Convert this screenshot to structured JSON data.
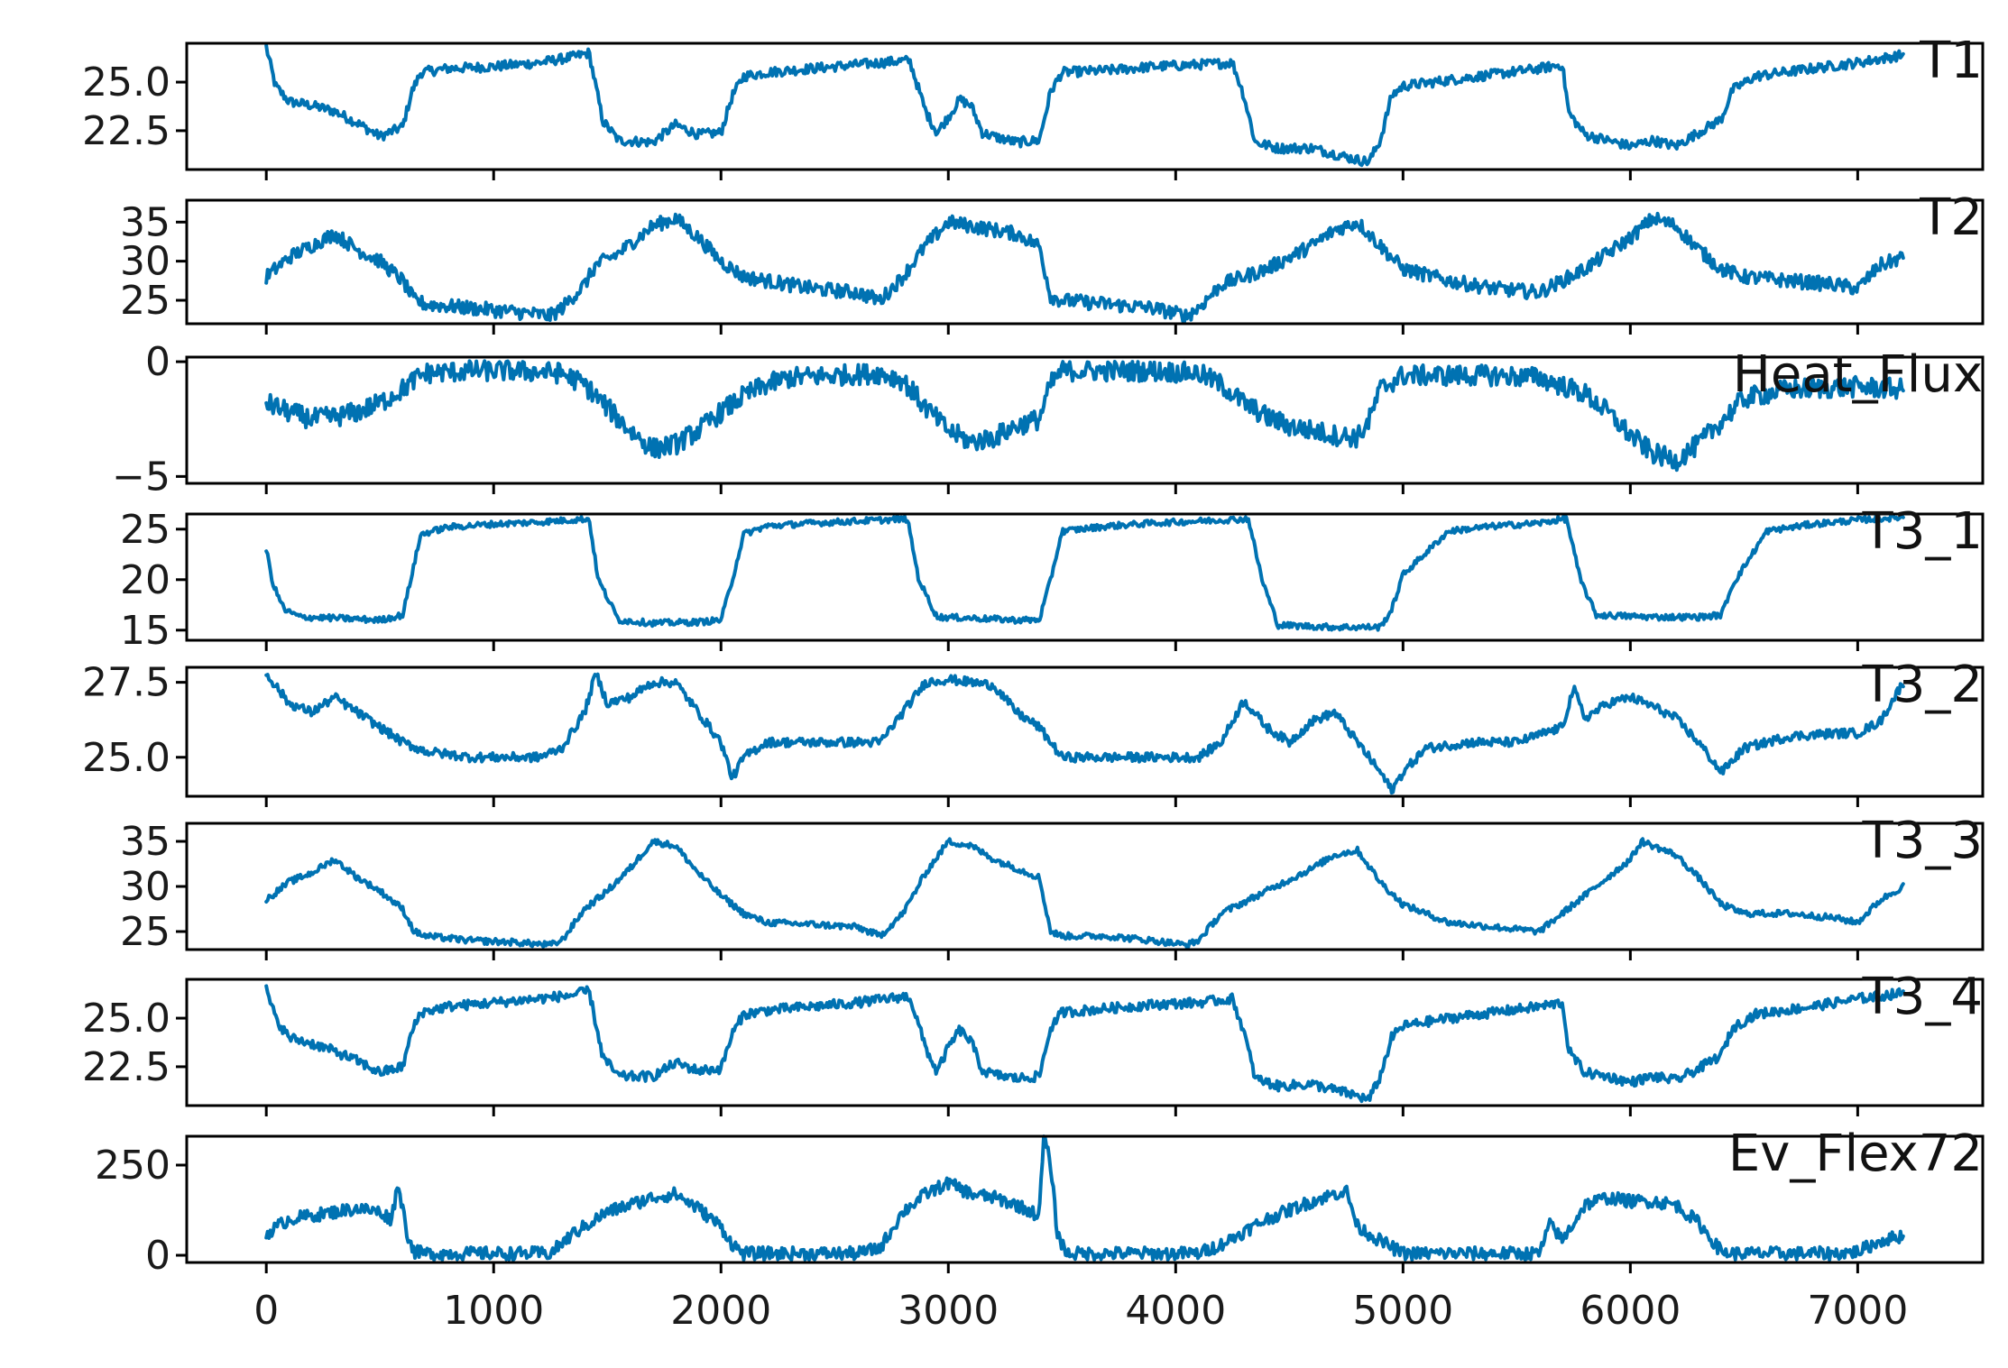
{
  "chart_data": {
    "type": "line",
    "shared_x": true,
    "xlim": [
      -350,
      7550
    ],
    "xticks": [
      0,
      1000,
      2000,
      3000,
      4000,
      5000,
      6000,
      7000
    ],
    "xtick_labels": [
      "0",
      "1000",
      "2000",
      "3000",
      "4000",
      "5000",
      "6000",
      "7000"
    ],
    "color": "#0072b2",
    "grid": false,
    "legend": "none",
    "panels": [
      {
        "label": "T1",
        "ylim": [
          20.5,
          27.0
        ],
        "yticks": [
          22.5,
          25.0
        ],
        "ytick_labels": [
          "22.5",
          "25.0"
        ],
        "noise": 0.25,
        "x": [
          0,
          40,
          100,
          200,
          300,
          400,
          500,
          600,
          640,
          680,
          800,
          1000,
          1200,
          1350,
          1420,
          1480,
          1550,
          1700,
          1800,
          1900,
          2000,
          2050,
          2100,
          2200,
          2400,
          2600,
          2800,
          2830,
          2900,
          2950,
          3000,
          3050,
          3100,
          3150,
          3200,
          3300,
          3400,
          3450,
          3500,
          3700,
          3900,
          4100,
          4250,
          4300,
          4350,
          4450,
          4600,
          4700,
          4800,
          4850,
          4900,
          4950,
          5000,
          5200,
          5400,
          5600,
          5700,
          5730,
          5800,
          5900,
          6000,
          6100,
          6200,
          6300,
          6400,
          6450,
          6550,
          6800,
          7000,
          7200
        ],
        "y": [
          26.8,
          24.8,
          24.0,
          23.8,
          23.5,
          22.9,
          22.2,
          22.7,
          24.5,
          25.5,
          25.7,
          25.8,
          26.0,
          26.3,
          26.5,
          23.0,
          22.0,
          21.9,
          22.8,
          22.3,
          22.4,
          24.3,
          25.3,
          25.5,
          25.7,
          25.9,
          26.1,
          26.1,
          23.5,
          22.4,
          23.2,
          24.1,
          23.8,
          22.4,
          22.2,
          21.9,
          22.0,
          24.5,
          25.5,
          25.6,
          25.8,
          25.9,
          26.0,
          24.3,
          21.9,
          21.6,
          21.6,
          21.3,
          21.0,
          20.9,
          22.0,
          24.3,
          24.8,
          25.1,
          25.4,
          25.7,
          25.9,
          23.4,
          22.3,
          22.0,
          21.7,
          22.0,
          21.7,
          22.4,
          23.1,
          24.6,
          25.3,
          25.7,
          26.0,
          26.4
        ]
      },
      {
        "label": "T2",
        "ylim": [
          22.0,
          37.8
        ],
        "yticks": [
          25,
          30,
          35
        ],
        "ytick_labels": [
          "25",
          "30",
          "35"
        ],
        "noise": 0.9,
        "x": [
          0,
          100,
          200,
          300,
          400,
          500,
          600,
          650,
          700,
          900,
          1100,
          1250,
          1300,
          1400,
          1450,
          1550,
          1700,
          1800,
          1900,
          2000,
          2100,
          2200,
          2400,
          2600,
          2700,
          2800,
          2900,
          3000,
          3100,
          3200,
          3300,
          3400,
          3450,
          3500,
          3700,
          3900,
          4050,
          4100,
          4200,
          4400,
          4600,
          4700,
          4800,
          4900,
          5000,
          5200,
          5400,
          5600,
          5800,
          6000,
          6100,
          6200,
          6300,
          6400,
          6500,
          6700,
          6900,
          7000,
          7100,
          7200
        ],
        "y": [
          28.0,
          30.5,
          32.0,
          33.5,
          31.5,
          30.0,
          27.5,
          25.0,
          24.5,
          24.0,
          23.5,
          23.0,
          24.0,
          27.0,
          29.5,
          31.0,
          34.5,
          35.5,
          33.0,
          30.0,
          28.0,
          27.5,
          26.5,
          26.0,
          25.0,
          28.0,
          32.0,
          35.0,
          34.5,
          34.0,
          33.5,
          32.0,
          25.5,
          25.0,
          24.5,
          24.0,
          23.0,
          24.0,
          27.0,
          29.0,
          32.0,
          34.0,
          35.0,
          32.0,
          29.0,
          27.5,
          26.5,
          26.0,
          29.0,
          33.0,
          35.5,
          34.5,
          31.5,
          29.0,
          28.0,
          27.5,
          27.0,
          26.5,
          29.5,
          30.5
        ]
      },
      {
        "label": "Heat_Flux",
        "ylim": [
          -5.3,
          0.2
        ],
        "yticks": [
          -5,
          0
        ],
        "ytick_labels": [
          "−5",
          "0"
        ],
        "noise": 0.45,
        "x": [
          0,
          100,
          200,
          300,
          400,
          500,
          550,
          600,
          650,
          700,
          900,
          1100,
          1300,
          1400,
          1500,
          1600,
          1700,
          1800,
          1900,
          2000,
          2100,
          2200,
          2300,
          2500,
          2700,
          2800,
          2900,
          3000,
          3100,
          3200,
          3300,
          3400,
          3450,
          3500,
          3700,
          3900,
          4100,
          4200,
          4300,
          4400,
          4500,
          4600,
          4700,
          4800,
          4850,
          4900,
          5000,
          5200,
          5400,
          5600,
          5800,
          5900,
          6000,
          6100,
          6200,
          6300,
          6400,
          6500,
          6700,
          7000,
          7200
        ],
        "y": [
          -1.8,
          -2.2,
          -2.5,
          -2.4,
          -2.2,
          -1.8,
          -1.5,
          -1.2,
          -0.8,
          -0.5,
          -0.4,
          -0.4,
          -0.5,
          -1.0,
          -2.0,
          -3.0,
          -3.8,
          -3.6,
          -3.0,
          -2.2,
          -1.5,
          -1.0,
          -0.7,
          -0.6,
          -0.5,
          -0.8,
          -2.0,
          -3.0,
          -3.5,
          -3.3,
          -2.8,
          -2.5,
          -1.0,
          -0.4,
          -0.4,
          -0.4,
          -0.5,
          -1.0,
          -1.8,
          -2.4,
          -2.8,
          -3.0,
          -3.2,
          -3.3,
          -2.6,
          -1.2,
          -0.6,
          -0.6,
          -0.6,
          -0.7,
          -1.4,
          -2.2,
          -3.2,
          -4.0,
          -4.3,
          -3.6,
          -2.6,
          -1.6,
          -1.2,
          -1.1,
          -1.2
        ]
      },
      {
        "label": "T3_1",
        "ylim": [
          14.0,
          26.5
        ],
        "yticks": [
          15,
          20,
          25
        ],
        "ytick_labels": [
          "15",
          "20",
          "25"
        ],
        "noise": 0.3,
        "x": [
          0,
          30,
          80,
          150,
          300,
          500,
          600,
          640,
          680,
          800,
          1000,
          1200,
          1400,
          1420,
          1460,
          1550,
          1700,
          1900,
          2000,
          2050,
          2100,
          2200,
          2400,
          2600,
          2800,
          2820,
          2870,
          2950,
          3100,
          3300,
          3400,
          3450,
          3500,
          3700,
          3900,
          4100,
          4300,
          4320,
          4380,
          4450,
          4700,
          4900,
          4950,
          5000,
          5200,
          5400,
          5600,
          5700,
          5720,
          5780,
          5850,
          6100,
          6300,
          6400,
          6450,
          6600,
          6800,
          7000,
          7200
        ],
        "y": [
          23.0,
          19.5,
          17.0,
          16.3,
          16.2,
          16.0,
          16.5,
          20.5,
          24.5,
          25.2,
          25.5,
          25.7,
          26.0,
          26.0,
          20.0,
          16.0,
          15.7,
          15.8,
          16.0,
          20.0,
          24.5,
          25.3,
          25.6,
          25.8,
          26.0,
          26.0,
          20.0,
          16.3,
          16.2,
          16.0,
          16.0,
          20.0,
          24.8,
          25.3,
          25.6,
          25.8,
          26.0,
          26.0,
          20.0,
          15.5,
          15.3,
          15.3,
          17.0,
          20.5,
          24.8,
          25.3,
          25.6,
          26.0,
          26.0,
          20.0,
          16.5,
          16.3,
          16.3,
          16.5,
          19.5,
          24.8,
          25.5,
          25.9,
          26.2
        ]
      },
      {
        "label": "T3_2",
        "ylim": [
          23.7,
          28.0
        ],
        "yticks": [
          25.0,
          27.5
        ],
        "ytick_labels": [
          "25.0",
          "27.5"
        ],
        "noise": 0.15,
        "x": [
          0,
          100,
          200,
          300,
          400,
          500,
          600,
          700,
          900,
          1100,
          1200,
          1300,
          1400,
          1450,
          1500,
          1600,
          1700,
          1800,
          1900,
          2000,
          2050,
          2100,
          2200,
          2400,
          2600,
          2700,
          2800,
          2900,
          3000,
          3100,
          3200,
          3300,
          3400,
          3450,
          3500,
          3700,
          3900,
          4100,
          4200,
          4300,
          4400,
          4500,
          4600,
          4700,
          4800,
          4900,
          4950,
          5000,
          5100,
          5300,
          5500,
          5700,
          5750,
          5800,
          5900,
          6000,
          6100,
          6200,
          6300,
          6400,
          6500,
          6700,
          6900,
          7000,
          7100,
          7200
        ],
        "y": [
          27.8,
          26.8,
          26.5,
          27.0,
          26.5,
          26.0,
          25.5,
          25.2,
          25.0,
          25.0,
          25.0,
          25.3,
          26.5,
          27.8,
          26.8,
          27.0,
          27.5,
          27.5,
          26.5,
          25.5,
          24.3,
          25.0,
          25.5,
          25.5,
          25.5,
          25.5,
          26.5,
          27.5,
          27.6,
          27.5,
          27.4,
          26.5,
          26.0,
          25.5,
          25.0,
          25.0,
          25.0,
          25.0,
          25.5,
          26.9,
          26.0,
          25.5,
          26.2,
          26.5,
          25.5,
          24.5,
          23.9,
          24.5,
          25.3,
          25.5,
          25.5,
          26.0,
          27.3,
          26.3,
          26.8,
          27.0,
          26.7,
          26.3,
          25.5,
          24.5,
          25.3,
          25.7,
          25.8,
          25.8,
          26.2,
          27.5
        ]
      },
      {
        "label": "T3_3",
        "ylim": [
          23.0,
          37.0
        ],
        "yticks": [
          25,
          30,
          35
        ],
        "ytick_labels": [
          "25",
          "30",
          "35"
        ],
        "noise": 0.35,
        "x": [
          0,
          100,
          200,
          300,
          400,
          500,
          600,
          650,
          700,
          900,
          1100,
          1250,
          1300,
          1400,
          1500,
          1600,
          1700,
          1800,
          1900,
          2000,
          2100,
          2200,
          2400,
          2600,
          2700,
          2800,
          2900,
          3000,
          3100,
          3200,
          3300,
          3400,
          3450,
          3500,
          3700,
          3900,
          4050,
          4100,
          4200,
          4400,
          4600,
          4700,
          4800,
          4900,
          5000,
          5200,
          5400,
          5600,
          5800,
          6000,
          6050,
          6200,
          6300,
          6400,
          6500,
          6700,
          6900,
          7000,
          7100,
          7200
        ],
        "y": [
          28.5,
          30.5,
          31.5,
          33.0,
          31.0,
          29.5,
          27.5,
          25.0,
          24.5,
          24.0,
          23.8,
          23.5,
          24.0,
          27.5,
          29.5,
          32.0,
          35.0,
          34.5,
          31.5,
          29.0,
          27.0,
          26.0,
          25.8,
          25.5,
          24.5,
          27.0,
          31.5,
          35.0,
          34.5,
          33.0,
          32.0,
          31.0,
          25.0,
          24.5,
          24.5,
          24.0,
          23.5,
          24.0,
          27.0,
          29.5,
          32.0,
          33.5,
          34.0,
          30.5,
          28.0,
          26.0,
          25.5,
          25.0,
          29.0,
          33.0,
          35.0,
          33.5,
          31.0,
          28.0,
          27.0,
          27.0,
          26.5,
          26.0,
          28.5,
          30.0
        ]
      },
      {
        "label": "T3_4",
        "ylim": [
          20.5,
          27.0
        ],
        "yticks": [
          22.5,
          25.0
        ],
        "ytick_labels": [
          "22.5",
          "25.0"
        ],
        "noise": 0.25,
        "x": [
          0,
          40,
          100,
          200,
          300,
          400,
          500,
          600,
          640,
          680,
          800,
          1000,
          1200,
          1350,
          1420,
          1480,
          1550,
          1700,
          1800,
          1900,
          2000,
          2050,
          2100,
          2200,
          2400,
          2600,
          2800,
          2830,
          2900,
          2950,
          3000,
          3050,
          3100,
          3150,
          3200,
          3300,
          3400,
          3450,
          3500,
          3700,
          3900,
          4100,
          4250,
          4300,
          4350,
          4450,
          4600,
          4700,
          4800,
          4850,
          4900,
          4950,
          5000,
          5200,
          5400,
          5600,
          5700,
          5730,
          5800,
          5900,
          6000,
          6100,
          6200,
          6300,
          6400,
          6450,
          6550,
          6800,
          7000,
          7200
        ],
        "y": [
          26.5,
          25.0,
          24.0,
          23.7,
          23.3,
          22.8,
          22.2,
          22.5,
          24.3,
          25.3,
          25.6,
          25.8,
          26.0,
          26.2,
          26.4,
          23.0,
          22.0,
          22.0,
          22.7,
          22.3,
          22.4,
          24.2,
          25.2,
          25.4,
          25.6,
          25.8,
          26.1,
          26.1,
          23.5,
          22.2,
          23.5,
          24.4,
          23.8,
          22.3,
          22.1,
          21.9,
          22.0,
          24.5,
          25.3,
          25.5,
          25.7,
          25.8,
          26.0,
          24.3,
          21.9,
          21.5,
          21.6,
          21.3,
          21.0,
          20.8,
          22.0,
          24.0,
          24.6,
          25.0,
          25.3,
          25.6,
          25.8,
          23.3,
          22.2,
          22.0,
          21.7,
          22.0,
          21.8,
          22.4,
          23.1,
          24.5,
          25.2,
          25.6,
          26.0,
          26.3
        ]
      },
      {
        "label": "Ev_Flex72",
        "ylim": [
          -20,
          330
        ],
        "yticks": [
          0,
          250
        ],
        "ytick_labels": [
          "0",
          "250"
        ],
        "noise": 18,
        "x": [
          0,
          100,
          200,
          300,
          400,
          500,
          550,
          580,
          620,
          650,
          700,
          900,
          1100,
          1250,
          1350,
          1500,
          1700,
          1800,
          1900,
          2000,
          2050,
          2100,
          2200,
          2400,
          2600,
          2700,
          2800,
          2900,
          3000,
          3100,
          3200,
          3300,
          3400,
          3420,
          3450,
          3480,
          3520,
          3600,
          3800,
          4000,
          4100,
          4200,
          4400,
          4600,
          4700,
          4750,
          4800,
          4900,
          5000,
          5200,
          5400,
          5600,
          5650,
          5700,
          5800,
          5900,
          6000,
          6100,
          6200,
          6300,
          6400,
          6450,
          6500,
          6700,
          6900,
          7000,
          7100,
          7200
        ],
        "y": [
          60,
          100,
          110,
          120,
          130,
          120,
          100,
          200,
          60,
          10,
          5,
          5,
          5,
          5,
          60,
          120,
          160,
          170,
          130,
          80,
          30,
          5,
          5,
          5,
          5,
          20,
          120,
          170,
          200,
          170,
          160,
          140,
          110,
          330,
          250,
          60,
          5,
          5,
          5,
          5,
          5,
          30,
          100,
          150,
          170,
          180,
          80,
          40,
          5,
          5,
          5,
          5,
          90,
          40,
          140,
          160,
          150,
          150,
          140,
          90,
          10,
          5,
          5,
          5,
          5,
          10,
          40,
          55
        ]
      }
    ]
  }
}
